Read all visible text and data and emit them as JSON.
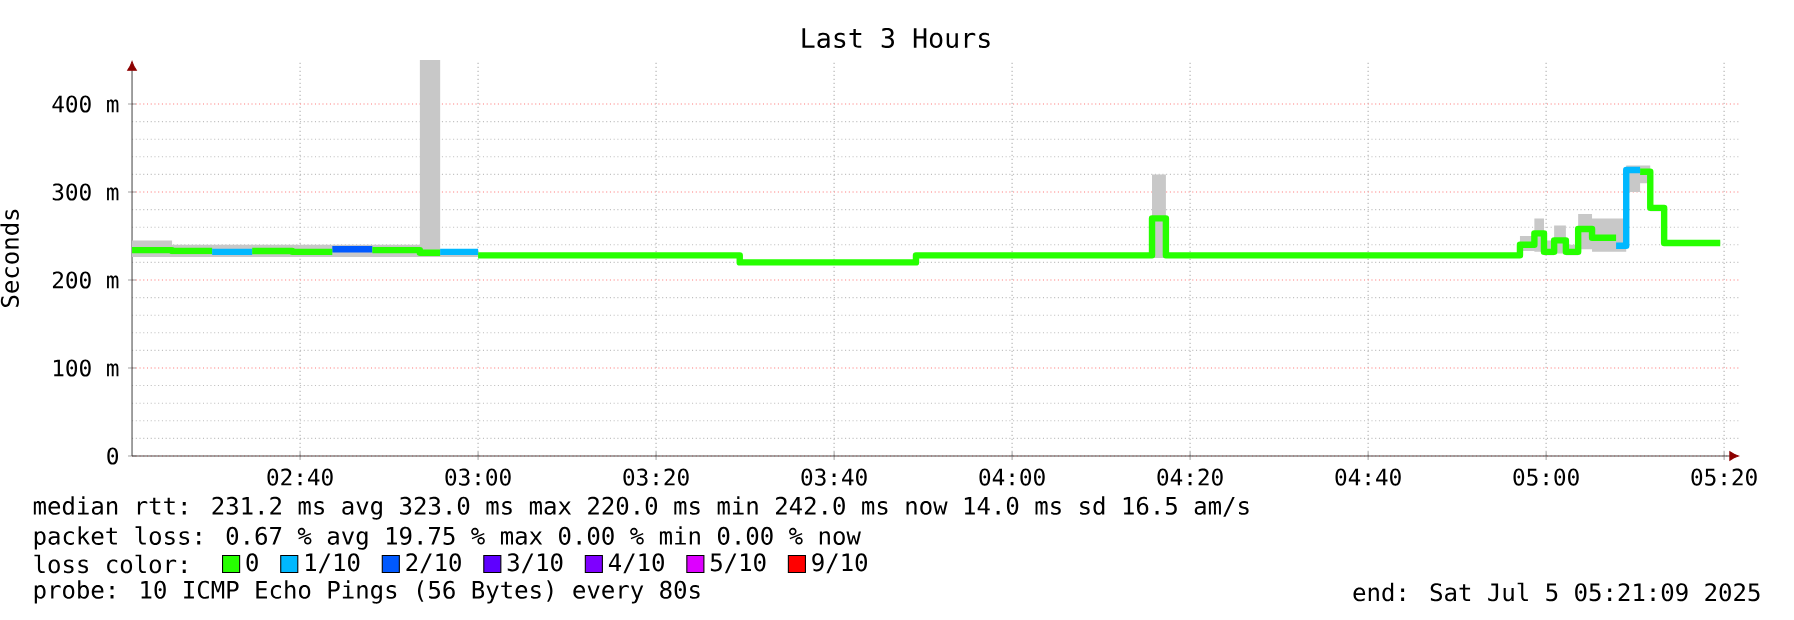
{
  "chart_data": {
    "type": "step",
    "title": "Last 3 Hours",
    "ylabel": "Seconds",
    "legend_title": "loss color:",
    "legend": "bottom",
    "grid": true,
    "annotations": [
      "median rtt:  231.2 ms avg  323.0 ms max  220.0 ms min  242.0 ms now  14.0 ms sd  16.5   am/s",
      "packet loss: 0.67 % avg  19.75 % max  0.00 % min  0.00 % now",
      "probe:       10 ICMP Echo Pings (56 Bytes) every 80s",
      "end: Sat Jul  5 05:21:09 2025"
    ],
    "xlim": [
      2.352,
      5.363
    ],
    "ylim": [
      0,
      450
    ],
    "xticks": [
      {
        "value": 2.6667,
        "label": "02:40"
      },
      {
        "value": 3,
        "label": "03:00"
      },
      {
        "value": 3.3333,
        "label": "03:20"
      },
      {
        "value": 3.6667,
        "label": "03:40"
      },
      {
        "value": 4,
        "label": "04:00"
      },
      {
        "value": 4.3333,
        "label": "04:20"
      },
      {
        "value": 4.6667,
        "label": "04:40"
      },
      {
        "value": 5,
        "label": "05:00"
      },
      {
        "value": 5.3333,
        "label": "05:20"
      }
    ],
    "yticks": [
      0,
      {
        "value": 100,
        "label": "100 m"
      },
      {
        "value": 200,
        "label": "200 m"
      },
      {
        "value": 300,
        "label": "300 m"
      },
      {
        "value": 400,
        "label": "400 m"
      }
    ],
    "x": [
      2.352,
      2.427,
      2.502,
      2.577,
      2.652,
      2.727,
      2.802,
      2.891,
      2.929,
      3.0,
      3.49,
      3.82,
      4.262,
      4.288,
      4.951,
      4.978,
      4.996,
      5.015,
      5.037,
      5.06,
      5.086,
      5.131,
      5.15,
      5.176,
      5.195,
      5.221,
      5.326
    ],
    "series": [
      {
        "color": "#c8c8c8",
        "values": [
          null,
          null,
          null,
          null,
          null,
          null,
          null,
          null,
          null,
          null,
          null,
          null,
          null,
          null,
          null,
          null,
          null,
          null,
          null,
          null,
          null,
          null,
          null,
          null,
          null,
          null,
          null
        ],
        "lower": [
          226,
          226,
          226,
          226,
          226,
          226,
          226,
          226,
          226,
          227,
          219,
          227,
          225,
          227,
          233,
          232,
          228,
          230,
          228,
          235,
          232,
          232,
          300,
          310,
          278,
          240,
          240
        ],
        "upper": [
          245,
          240,
          240,
          240,
          240,
          240,
          240,
          450,
          235,
          229,
          221,
          229,
          320,
          229,
          250,
          270,
          245,
          262,
          240,
          275,
          270,
          270,
          330,
          330,
          285,
          244,
          244
        ]
      },
      {
        "name": "0",
        "color": "#26ff00",
        "x": [
          2.352,
          2.427,
          2.502
        ],
        "values": [
          234,
          233,
          233
        ]
      },
      {
        "name": "1/10",
        "color": "#00b8ff",
        "x": [
          2.502,
          2.577
        ],
        "values": [
          232,
          232
        ]
      },
      {
        "name": "2/10",
        "color": "#0059ff",
        "x": [
          2.727,
          2.802
        ],
        "values": [
          235,
          235
        ]
      },
      {
        "name": "3/10",
        "color": "#5e00ff",
        "values": [
          null,
          null,
          null,
          null,
          null,
          null,
          null,
          null,
          null,
          null,
          null,
          null,
          null,
          null,
          null,
          null,
          null,
          null,
          null,
          null,
          null,
          null,
          null,
          null,
          null,
          null,
          null
        ]
      },
      {
        "name": "4/10",
        "color": "#7e00ff",
        "values": [
          null,
          null,
          null,
          null,
          null,
          null,
          null,
          null,
          null,
          null,
          null,
          null,
          null,
          null,
          null,
          null,
          null,
          null,
          null,
          null,
          null,
          null,
          null,
          null,
          null,
          null,
          null
        ]
      },
      {
        "name": "5/10",
        "color": "#dd00ff",
        "values": [
          null,
          null,
          null,
          null,
          null,
          null,
          null,
          null,
          null,
          null,
          null,
          null,
          null,
          null,
          null,
          null,
          null,
          null,
          null,
          null,
          null,
          null,
          null,
          null,
          null,
          null,
          null
        ]
      },
      {
        "name": "9/10",
        "color": "#ff0000",
        "values": [
          null,
          null,
          null,
          null,
          null,
          null,
          null,
          null,
          null,
          null,
          null,
          null,
          null,
          null,
          null,
          null,
          null,
          null,
          null,
          null,
          null,
          null,
          null,
          null,
          null,
          null,
          null
        ]
      },
      {
        "color": "#26ff00",
        "x": [
          2.577,
          2.652,
          2.727
        ],
        "values": [
          233,
          232,
          232
        ]
      },
      {
        "color": "#26ff00",
        "x": [
          2.802,
          2.891,
          2.929
        ],
        "values": [
          234,
          231,
          231
        ]
      },
      {
        "color": "#26ff00",
        "x": [
          3.0,
          3.49,
          3.82,
          4.262,
          4.288,
          4.951,
          4.978,
          4.996,
          5.015,
          5.037,
          5.06,
          5.086,
          5.131
        ],
        "values": [
          228,
          220,
          228,
          270,
          228,
          240,
          253,
          232,
          245,
          232,
          258,
          248,
          248
        ]
      },
      {
        "color": "#26ff00",
        "x": [
          5.176,
          5.195,
          5.221,
          5.326
        ],
        "values": [
          323,
          282,
          242,
          242
        ]
      },
      {
        "color": "#00b8ff",
        "x": [
          2.929,
          3.0
        ],
        "values": [
          232,
          232
        ]
      },
      {
        "color": "#00b8ff",
        "x": [
          5.131,
          5.15,
          5.176
        ],
        "values": [
          239,
          325,
          325
        ]
      }
    ]
  }
}
